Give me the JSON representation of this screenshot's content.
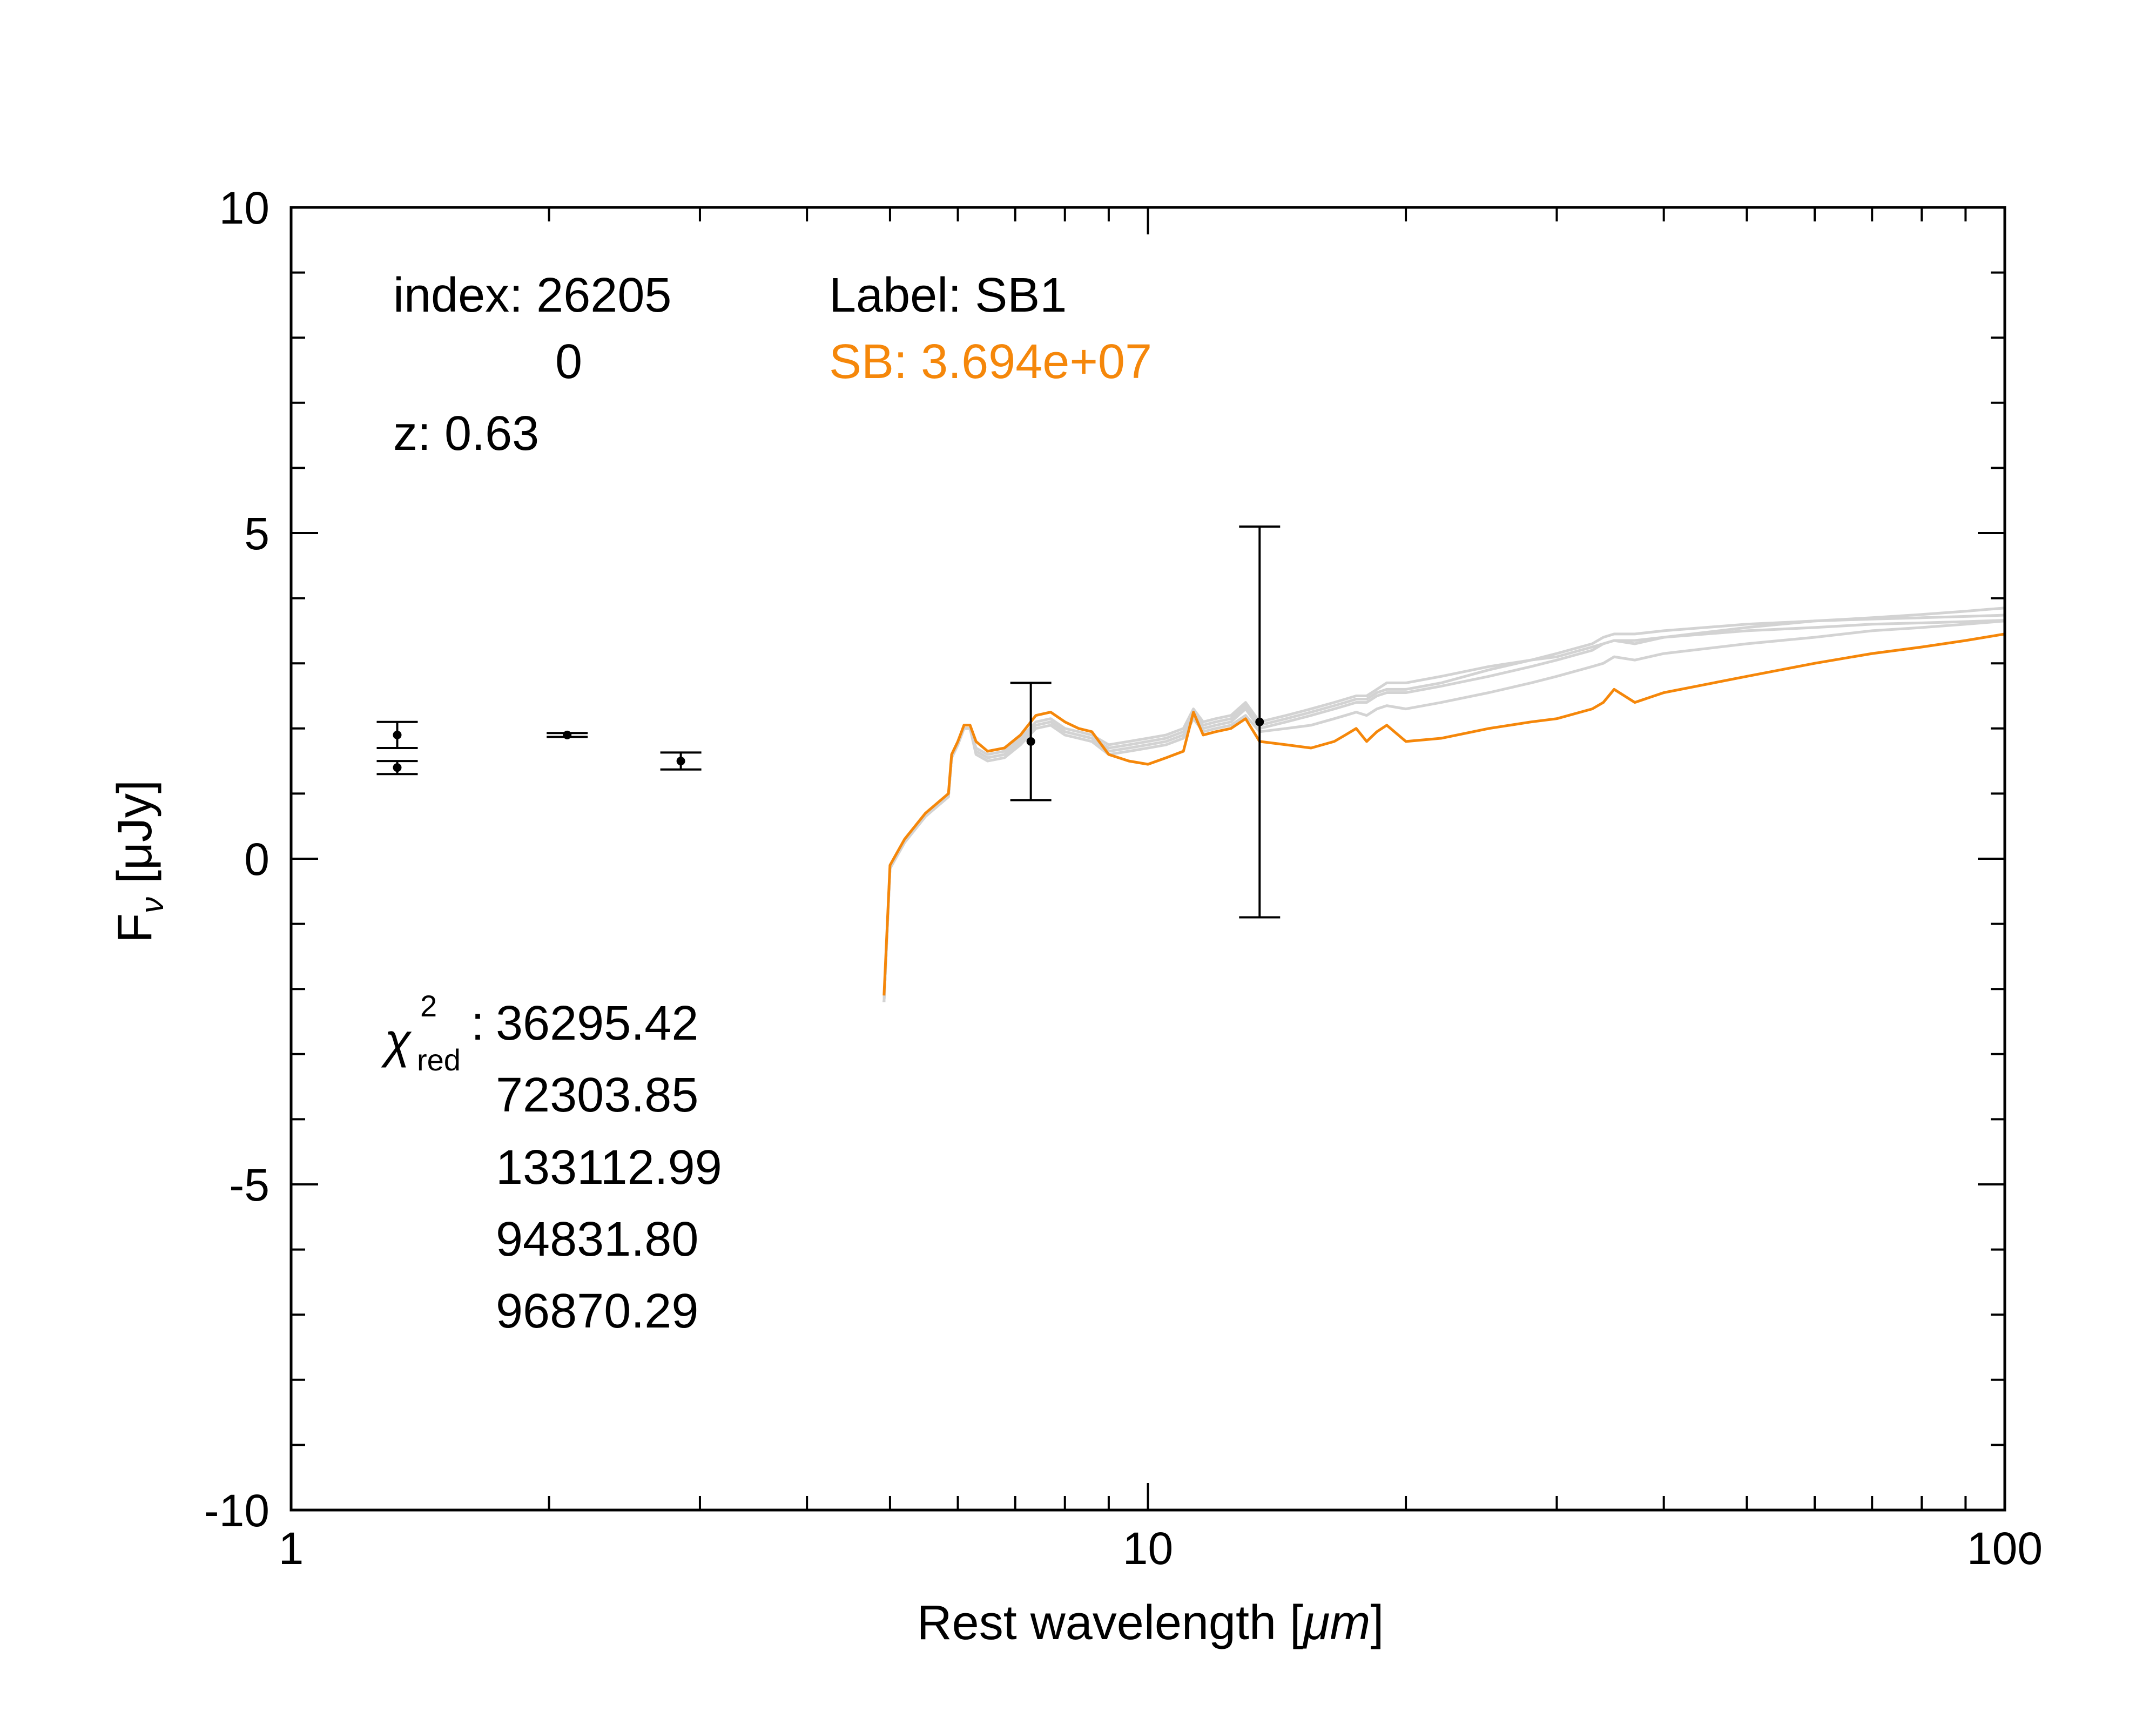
{
  "chart_data": {
    "type": "line",
    "xlabel_prefix": "Rest wavelength [",
    "xlabel_unit": "μm",
    "xlabel_suffix": "]",
    "ylabel_prefix": "F",
    "ylabel_sub": "ν",
    "ylabel_unit": " [μJy]",
    "x_scale": "log",
    "xlim": [
      1,
      100
    ],
    "ylim": [
      -10,
      10
    ],
    "xticks": [
      {
        "value": 1,
        "label": "1"
      },
      {
        "value": 10,
        "label": "10"
      },
      {
        "value": 100,
        "label": "100"
      }
    ],
    "yticks": [
      {
        "value": 10,
        "label": "10"
      },
      {
        "value": 5,
        "label": "5"
      },
      {
        "value": 0,
        "label": "0"
      },
      {
        "value": -5,
        "label": "-5"
      },
      {
        "value": -10,
        "label": "-10"
      }
    ],
    "y_minor_step": 1,
    "grid": false,
    "annotations": {
      "index_line": "index: 26205",
      "index_second": "0",
      "z_line": "z: 0.63",
      "label_line": "Label: SB1",
      "sb_line": "SB: 3.694e+07",
      "chi_symbol": "χ",
      "chi_sup": "2",
      "chi_sub": "red",
      "chi_colon": ":",
      "chi_values": [
        "36295.42",
        "72303.85",
        "133112.99",
        "94831.80",
        "96870.29"
      ]
    },
    "colors": {
      "best_fit": "#f5870a",
      "other_fits": "#d3d3d3",
      "observed": "#000000",
      "annotation_orange": "#f5870a"
    },
    "observed": [
      {
        "x": 1.33,
        "y": 1.9,
        "err": 0.2
      },
      {
        "x": 1.33,
        "y": 1.4,
        "err": 0.1
      },
      {
        "x": 2.1,
        "y": 1.9,
        "err": 0.03
      },
      {
        "x": 2.85,
        "y": 1.5,
        "err": 0.13
      },
      {
        "x": 7.3,
        "y": 1.8,
        "err": 0.9
      },
      {
        "x": 13.5,
        "y": 2.1,
        "err": 3.0
      }
    ],
    "series": [
      {
        "role": "best",
        "x": [
          4.92,
          5.0,
          5.2,
          5.5,
          5.85,
          5.9,
          6.0,
          6.1,
          6.2,
          6.3,
          6.5,
          6.8,
          7.1,
          7.4,
          7.7,
          8.0,
          8.3,
          8.6,
          9.0,
          9.5,
          10.0,
          10.5,
          11.0,
          11.3,
          11.6,
          12.0,
          12.5,
          13.0,
          13.5,
          14.5,
          15.5,
          16.5,
          17.0,
          17.5,
          18.0,
          18.5,
          19.0,
          20.0,
          22.0,
          25.0,
          28.0,
          30.0,
          33.0,
          34.0,
          35.0,
          37.0,
          40.0,
          50.0,
          60.0,
          70.0,
          80.0,
          90.0,
          100.0
        ],
        "y": [
          -2.1,
          -0.1,
          0.3,
          0.7,
          1.0,
          1.6,
          1.8,
          2.05,
          2.05,
          1.8,
          1.65,
          1.7,
          1.9,
          2.2,
          2.25,
          2.1,
          2.0,
          1.95,
          1.6,
          1.5,
          1.45,
          1.55,
          1.65,
          2.25,
          1.9,
          1.95,
          2.0,
          2.15,
          1.8,
          1.75,
          1.7,
          1.8,
          1.9,
          2.0,
          1.8,
          1.95,
          2.05,
          1.8,
          1.85,
          2.0,
          2.1,
          2.15,
          2.3,
          2.4,
          2.6,
          2.4,
          2.55,
          2.8,
          3.0,
          3.15,
          3.25,
          3.35,
          3.45
        ]
      },
      {
        "role": "other",
        "x": [
          4.92,
          5.0,
          5.2,
          5.5,
          5.85,
          5.9,
          6.0,
          6.1,
          6.2,
          6.3,
          6.5,
          6.8,
          7.1,
          7.4,
          7.7,
          8.0,
          8.3,
          8.6,
          9.0,
          9.5,
          10.0,
          10.5,
          11.0,
          11.3,
          11.6,
          12.0,
          12.5,
          13.0,
          13.5,
          14.5,
          15.5,
          16.5,
          17.0,
          17.5,
          18.0,
          18.5,
          19.0,
          20.0,
          22.0,
          25.0,
          28.0,
          30.0,
          33.0,
          34.0,
          35.0,
          37.0,
          40.0,
          50.0,
          60.0,
          70.0,
          80.0,
          90.0,
          100.0
        ],
        "y": [
          -2.2,
          -0.15,
          0.25,
          0.65,
          0.95,
          1.55,
          1.75,
          2.0,
          2.0,
          1.7,
          1.6,
          1.65,
          1.85,
          2.1,
          2.15,
          2.0,
          1.95,
          1.9,
          1.75,
          1.8,
          1.85,
          1.9,
          2.0,
          2.3,
          2.1,
          2.15,
          2.2,
          2.4,
          2.1,
          2.2,
          2.3,
          2.4,
          2.45,
          2.5,
          2.5,
          2.6,
          2.7,
          2.7,
          2.8,
          2.95,
          3.05,
          3.1,
          3.25,
          3.3,
          3.35,
          3.3,
          3.4,
          3.55,
          3.65,
          3.7,
          3.75,
          3.8,
          3.85
        ]
      },
      {
        "role": "other",
        "x": [
          4.92,
          5.0,
          5.2,
          5.5,
          5.85,
          5.9,
          6.0,
          6.1,
          6.2,
          6.3,
          6.5,
          6.8,
          7.1,
          7.4,
          7.7,
          8.0,
          8.3,
          8.6,
          9.0,
          9.5,
          10.0,
          10.5,
          11.0,
          11.3,
          11.6,
          12.0,
          12.5,
          13.0,
          13.5,
          14.5,
          15.5,
          16.5,
          17.0,
          17.5,
          18.0,
          18.5,
          19.0,
          20.0,
          22.0,
          25.0,
          28.0,
          30.0,
          33.0,
          34.0,
          35.0,
          37.0,
          40.0,
          50.0,
          60.0,
          70.0,
          80.0,
          90.0,
          100.0
        ],
        "y": [
          -2.2,
          -0.15,
          0.25,
          0.65,
          0.95,
          1.55,
          1.75,
          2.0,
          2.0,
          1.65,
          1.55,
          1.6,
          1.8,
          2.05,
          2.1,
          1.95,
          1.9,
          1.85,
          1.65,
          1.7,
          1.75,
          1.8,
          1.9,
          2.2,
          2.0,
          2.05,
          2.1,
          2.3,
          2.0,
          2.1,
          2.2,
          2.3,
          2.35,
          2.4,
          2.4,
          2.5,
          2.55,
          2.55,
          2.65,
          2.8,
          2.95,
          3.05,
          3.2,
          3.3,
          3.35,
          3.35,
          3.4,
          3.5,
          3.55,
          3.6,
          3.62,
          3.64,
          3.66
        ]
      },
      {
        "role": "other",
        "x": [
          4.92,
          5.0,
          5.2,
          5.5,
          5.85,
          5.9,
          6.0,
          6.1,
          6.2,
          6.3,
          6.5,
          6.8,
          7.1,
          7.4,
          7.7,
          8.0,
          8.3,
          8.6,
          9.0,
          9.5,
          10.0,
          10.5,
          11.0,
          11.3,
          11.6,
          12.0,
          12.5,
          13.0,
          13.5,
          14.5,
          15.5,
          16.5,
          17.0,
          17.5,
          18.0,
          18.5,
          19.0,
          20.0,
          22.0,
          25.0,
          28.0,
          30.0,
          33.0,
          34.0,
          35.0,
          37.0,
          40.0,
          50.0,
          60.0,
          70.0,
          80.0,
          90.0,
          100.0
        ],
        "y": [
          -2.2,
          -0.15,
          0.25,
          0.65,
          0.95,
          1.55,
          1.75,
          2.0,
          2.0,
          1.6,
          1.5,
          1.55,
          1.75,
          2.0,
          2.05,
          1.9,
          1.85,
          1.8,
          1.6,
          1.65,
          1.7,
          1.75,
          1.85,
          2.15,
          1.95,
          2.0,
          2.05,
          2.2,
          1.95,
          2.0,
          2.05,
          2.15,
          2.2,
          2.25,
          2.2,
          2.3,
          2.35,
          2.3,
          2.4,
          2.55,
          2.7,
          2.8,
          2.95,
          3.0,
          3.1,
          3.05,
          3.15,
          3.3,
          3.4,
          3.5,
          3.55,
          3.6,
          3.65
        ]
      },
      {
        "role": "other",
        "x": [
          4.92,
          5.0,
          5.2,
          5.5,
          5.85,
          5.9,
          6.0,
          6.1,
          6.2,
          6.3,
          6.5,
          6.8,
          7.1,
          7.4,
          7.7,
          8.0,
          8.3,
          8.6,
          9.0,
          9.5,
          10.0,
          10.5,
          11.0,
          11.3,
          11.6,
          12.0,
          12.5,
          13.0,
          13.5,
          14.5,
          15.5,
          16.5,
          17.0,
          17.5,
          18.0,
          18.5,
          19.0,
          20.0,
          22.0,
          25.0,
          28.0,
          30.0,
          33.0,
          34.0,
          35.0,
          37.0,
          40.0,
          50.0,
          60.0,
          70.0,
          80.0,
          90.0,
          100.0
        ],
        "y": [
          -2.2,
          -0.15,
          0.25,
          0.65,
          0.95,
          1.55,
          1.75,
          2.0,
          2.0,
          1.65,
          1.55,
          1.6,
          1.8,
          2.05,
          2.1,
          1.95,
          1.9,
          1.85,
          1.7,
          1.75,
          1.8,
          1.85,
          1.95,
          2.25,
          2.05,
          2.1,
          2.15,
          2.35,
          2.05,
          2.15,
          2.25,
          2.35,
          2.4,
          2.45,
          2.45,
          2.55,
          2.6,
          2.6,
          2.7,
          2.9,
          3.05,
          3.15,
          3.3,
          3.4,
          3.45,
          3.45,
          3.5,
          3.6,
          3.65,
          3.68,
          3.7,
          3.72,
          3.74
        ]
      }
    ]
  }
}
